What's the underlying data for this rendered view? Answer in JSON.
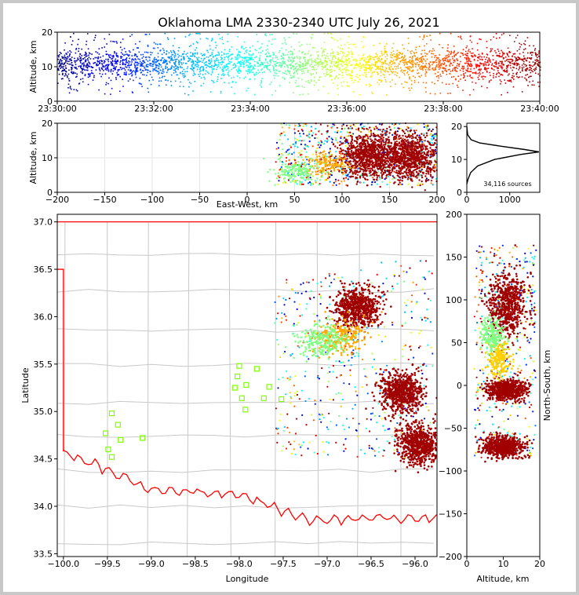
{
  "title": "Oklahoma LMA 2330-2340 UTC July 26, 2021",
  "sources_label": "34,116 sources",
  "chart_data": [
    {
      "type": "scatter",
      "panel": "altitude-time",
      "xlabel": "",
      "ylabel": "Altitude, km",
      "xticks": [
        "23:30:00",
        "23:32:00",
        "23:34:00",
        "23:36:00",
        "23:38:00",
        "23:40:00"
      ],
      "xlim": [
        "23:30:00",
        "23:40:00"
      ],
      "yticks": [
        0,
        10,
        20
      ],
      "ylim": [
        0,
        20
      ],
      "color_scale": [
        "#00008b",
        "#0000ff",
        "#00a0ff",
        "#00ffff",
        "#80ff80",
        "#ffff00",
        "#ff8000",
        "#ff0000",
        "#8b0000"
      ],
      "altitude_typical_km": [
        7,
        15
      ]
    },
    {
      "type": "scatter",
      "panel": "altitude-eastwest",
      "xlabel": "East-West, km",
      "ylabel": "Altitude, km",
      "xticks": [
        -200,
        -150,
        -100,
        -50,
        0,
        50,
        100,
        150,
        200
      ],
      "xlim": [
        -200,
        200
      ],
      "yticks": [
        0,
        10,
        20
      ],
      "ylim": [
        0,
        20
      ],
      "clusters": [
        {
          "x": 128,
          "y": 10.5,
          "color": "#a00000"
        },
        {
          "x": 172,
          "y": 10.5,
          "color": "#a00000"
        },
        {
          "x": 85,
          "y": 8,
          "color": "#ffa500"
        },
        {
          "x": 50,
          "y": 6,
          "color": "#80ff80"
        }
      ]
    },
    {
      "type": "line",
      "panel": "altitude-histogram",
      "xticks": [
        0,
        1000
      ],
      "xlim": [
        0,
        1700
      ],
      "yticks": [
        0,
        10,
        20
      ],
      "ylim": [
        0,
        21
      ],
      "profile": [
        {
          "alt": 2.5,
          "count": 0
        },
        {
          "alt": 4,
          "count": 30
        },
        {
          "alt": 6,
          "count": 90
        },
        {
          "alt": 8,
          "count": 250
        },
        {
          "alt": 10,
          "count": 650
        },
        {
          "alt": 11.5,
          "count": 1250
        },
        {
          "alt": 12.3,
          "count": 1680
        },
        {
          "alt": 13,
          "count": 1350
        },
        {
          "alt": 14,
          "count": 800
        },
        {
          "alt": 15,
          "count": 300
        },
        {
          "alt": 16,
          "count": 100
        },
        {
          "alt": 17.5,
          "count": 20
        },
        {
          "alt": 20,
          "count": 0
        }
      ]
    },
    {
      "type": "scatter",
      "panel": "plan-view-map",
      "xlabel": "Longitude",
      "ylabel": "Latitude",
      "xticks": [
        -100.0,
        -99.5,
        -99.0,
        -98.5,
        -98.0,
        -97.5,
        -97.0,
        -96.5,
        -96.0
      ],
      "xlim": [
        -100.07,
        -95.75
      ],
      "yticks": [
        33.5,
        34.0,
        34.5,
        35.0,
        35.5,
        36.0,
        36.5,
        37.0
      ],
      "ylim": [
        33.47,
        37.08
      ],
      "stations": [
        {
          "lon": -99.45,
          "lat": 34.98
        },
        {
          "lon": -99.38,
          "lat": 34.86
        },
        {
          "lon": -99.52,
          "lat": 34.77
        },
        {
          "lon": -99.35,
          "lat": 34.7
        },
        {
          "lon": -99.49,
          "lat": 34.6
        },
        {
          "lon": -99.45,
          "lat": 34.52
        },
        {
          "lon": -99.1,
          "lat": 34.72
        },
        {
          "lon": -98.0,
          "lat": 35.48
        },
        {
          "lon": -97.8,
          "lat": 35.45
        },
        {
          "lon": -98.02,
          "lat": 35.37
        },
        {
          "lon": -97.92,
          "lat": 35.28
        },
        {
          "lon": -98.05,
          "lat": 35.25
        },
        {
          "lon": -97.66,
          "lat": 35.26
        },
        {
          "lon": -97.97,
          "lat": 35.14
        },
        {
          "lon": -97.72,
          "lat": 35.14
        },
        {
          "lon": -97.52,
          "lat": 35.13
        },
        {
          "lon": -97.93,
          "lat": 35.02
        }
      ],
      "clusters": [
        {
          "lon": -96.65,
          "lat": 36.1,
          "color": "#a00000"
        },
        {
          "lon": -96.15,
          "lat": 35.2,
          "color": "#a00000"
        },
        {
          "lon": -95.95,
          "lat": 34.65,
          "color": "#a00000"
        },
        {
          "lon": -96.85,
          "lat": 35.8,
          "color": "#ffa500"
        },
        {
          "lon": -97.05,
          "lat": 35.75,
          "color": "#80ff80"
        }
      ]
    },
    {
      "type": "scatter",
      "panel": "northsouth-altitude",
      "xlabel": "Altitude, km",
      "ylabel": "North-South, km",
      "xticks": [
        0,
        10,
        20
      ],
      "xlim": [
        0,
        20
      ],
      "yticks": [
        -200,
        -150,
        -100,
        -50,
        0,
        50,
        100,
        150,
        200
      ],
      "ylim": [
        -200,
        200
      ],
      "clusters": [
        {
          "alt": 11,
          "ns": 95,
          "color": "#a00000"
        },
        {
          "alt": 11,
          "ns": -5,
          "color": "#a00000"
        },
        {
          "alt": 10,
          "ns": -72,
          "color": "#a00000"
        },
        {
          "alt": 9,
          "ns": 30,
          "color": "#ffd000"
        },
        {
          "alt": 7,
          "ns": 60,
          "color": "#80ff80"
        }
      ]
    }
  ]
}
